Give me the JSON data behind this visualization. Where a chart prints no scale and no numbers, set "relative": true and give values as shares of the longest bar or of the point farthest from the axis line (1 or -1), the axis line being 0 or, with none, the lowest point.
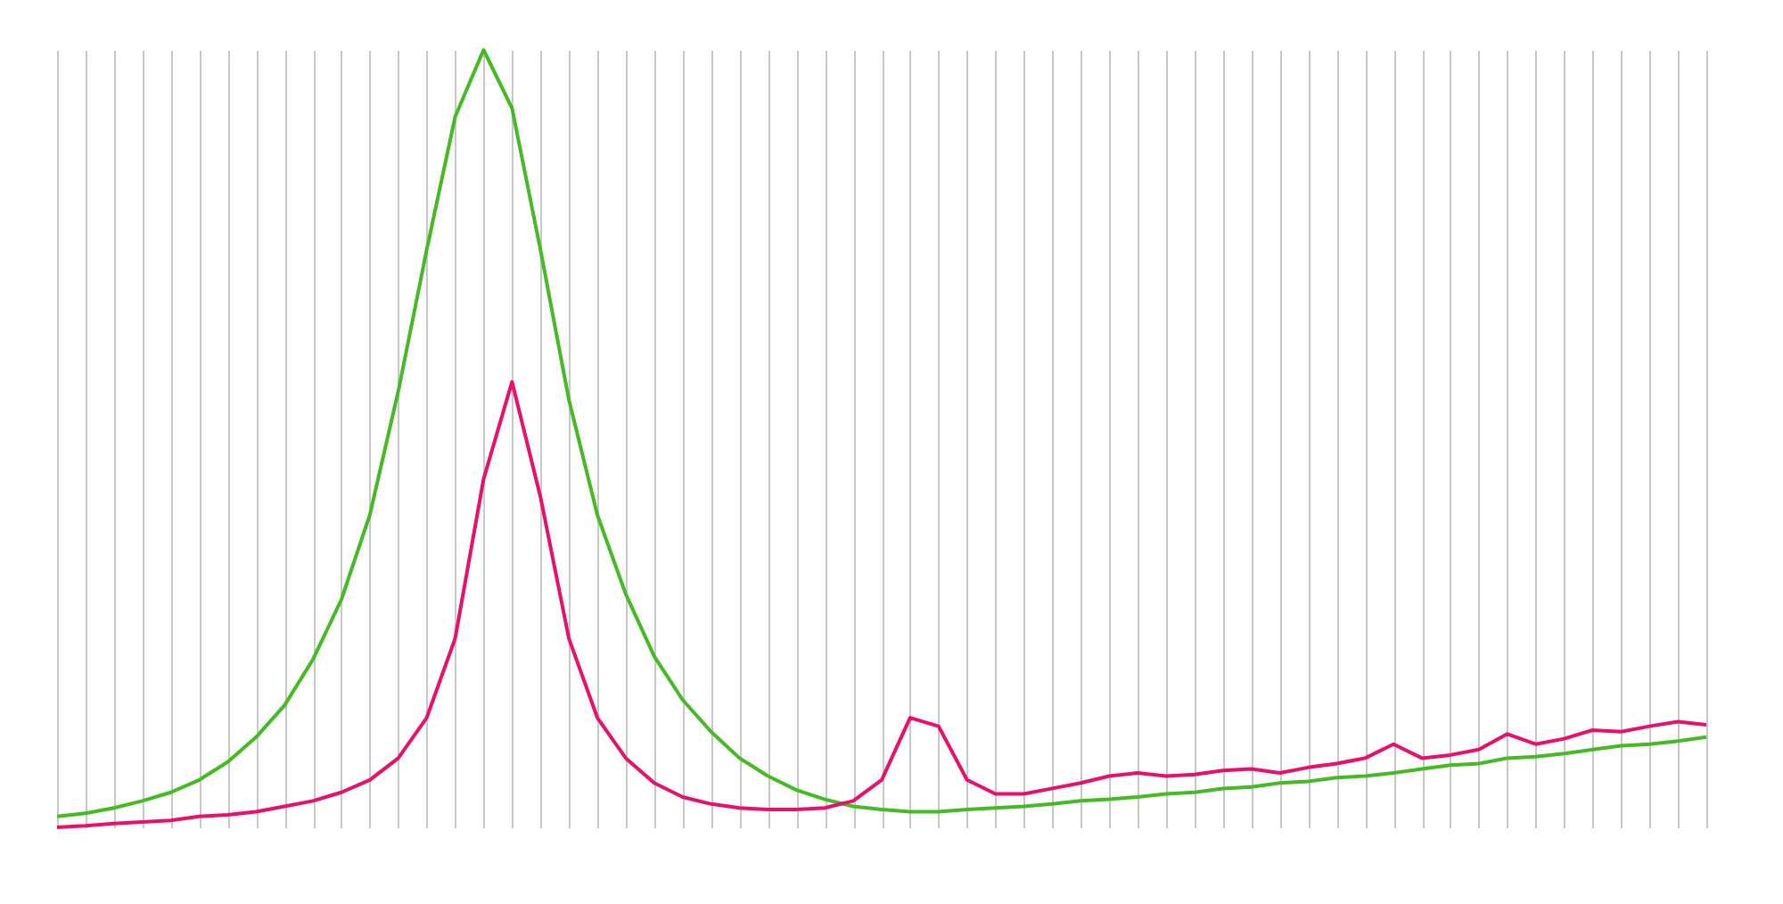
{
  "chart_data": {
    "type": "line",
    "relative": true,
    "grid": "x",
    "legend": false,
    "marker": "none",
    "line_style": "solid",
    "categories": [
      null,
      null,
      null,
      null,
      null,
      null,
      null,
      null,
      null,
      null,
      null,
      null,
      null,
      null,
      null,
      null,
      null,
      null,
      null,
      null,
      null,
      null,
      null,
      null,
      null,
      null,
      null,
      null,
      null,
      null,
      null,
      null,
      null,
      null,
      null,
      null,
      null,
      null,
      null,
      null,
      null,
      null,
      null,
      null,
      null,
      null,
      null,
      null,
      null,
      null,
      null,
      null,
      null,
      null,
      null,
      null,
      null,
      null,
      null
    ],
    "series": [
      {
        "color": "#44bb22",
        "values": [
          0.014,
          0.018,
          0.025,
          0.034,
          0.045,
          0.061,
          0.084,
          0.116,
          0.157,
          0.216,
          0.293,
          0.402,
          0.561,
          0.743,
          0.914,
          1,
          0.925,
          0.743,
          0.55,
          0.402,
          0.3,
          0.22,
          0.164,
          0.123,
          0.089,
          0.066,
          0.048,
          0.036,
          0.027,
          0.023,
          0.02,
          0.02,
          0.023,
          0.025,
          0.027,
          0.03,
          0.034,
          0.036,
          0.039,
          0.043,
          0.045,
          0.05,
          0.052,
          0.057,
          0.059,
          0.064,
          0.066,
          0.07,
          0.075,
          0.08,
          0.082,
          0.089,
          0.091,
          0.095,
          0.1,
          0.105,
          0.107,
          0.111,
          0.116
        ]
      },
      {
        "color": "#e8106a",
        "values": [
          0,
          0.002,
          0.005,
          0.007,
          0.009,
          0.014,
          0.016,
          0.02,
          0.027,
          0.034,
          0.045,
          0.061,
          0.089,
          0.141,
          0.243,
          0.448,
          0.573,
          0.425,
          0.243,
          0.141,
          0.089,
          0.057,
          0.039,
          0.03,
          0.025,
          0.023,
          0.023,
          0.025,
          0.034,
          0.061,
          0.141,
          0.13,
          0.061,
          0.043,
          0.043,
          0.05,
          0.057,
          0.066,
          0.07,
          0.066,
          0.068,
          0.073,
          0.075,
          0.07,
          0.077,
          0.082,
          0.089,
          0.107,
          0.089,
          0.093,
          0.1,
          0.12,
          0.107,
          0.114,
          0.125,
          0.123,
          0.13,
          0.136,
          0.132
        ]
      }
    ]
  }
}
